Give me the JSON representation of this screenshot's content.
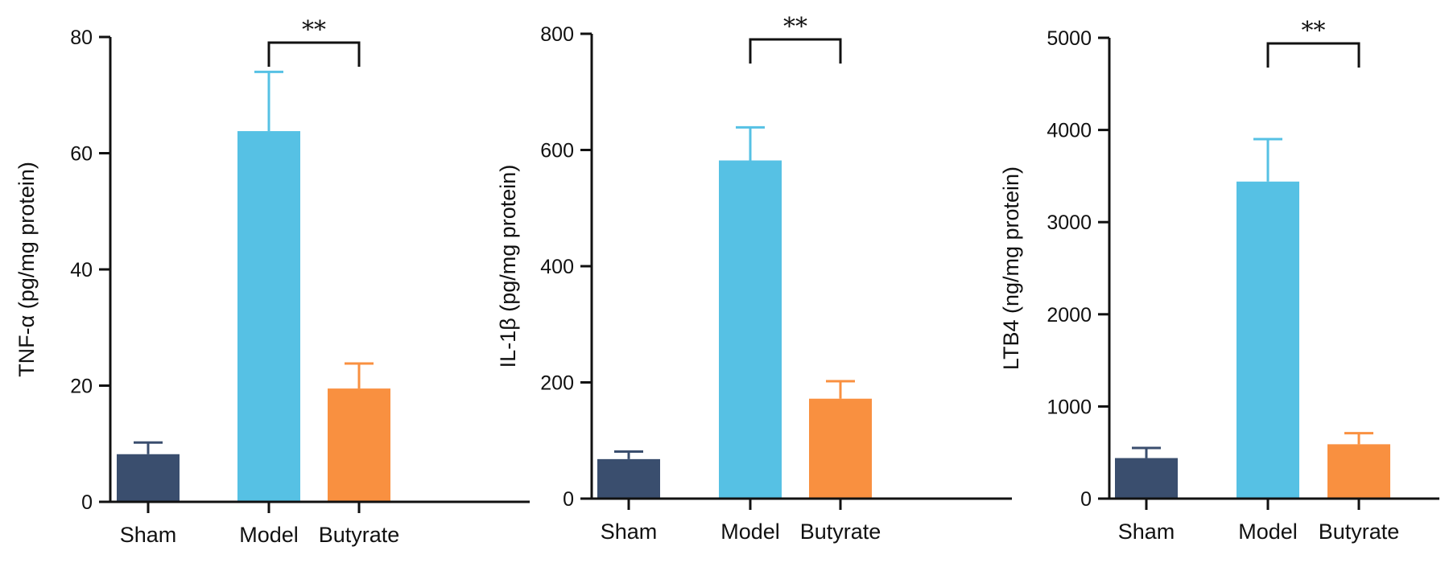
{
  "chart_data": [
    {
      "type": "bar",
      "categories": [
        "Sham",
        "Model",
        "Butyrate"
      ],
      "values": [
        8.2,
        63.8,
        19.5
      ],
      "errors": [
        2.0,
        10.2,
        4.3
      ],
      "ylabel": "TNF-α (pg/mg protein)",
      "ylim": [
        0,
        80
      ],
      "yticks": [
        0,
        20,
        40,
        60,
        80
      ],
      "significance": {
        "between": [
          "Model",
          "Butyrate"
        ],
        "label": "**"
      },
      "colors": [
        "#3a4e6e",
        "#56c1e4",
        "#f99040"
      ]
    },
    {
      "type": "bar",
      "categories": [
        "Sham",
        "Model",
        "Butyrate"
      ],
      "values": [
        68,
        582,
        172
      ],
      "errors": [
        13,
        57,
        30
      ],
      "ylabel": "IL-1β (pg/mg protein)",
      "ylim": [
        0,
        800
      ],
      "yticks": [
        0,
        200,
        400,
        600,
        800
      ],
      "significance": {
        "between": [
          "Model",
          "Butyrate"
        ],
        "label": "**"
      },
      "colors": [
        "#3a4e6e",
        "#56c1e4",
        "#f99040"
      ]
    },
    {
      "type": "bar",
      "categories": [
        "Sham",
        "Model",
        "Butyrate"
      ],
      "values": [
        440,
        3440,
        590
      ],
      "errors": [
        110,
        460,
        120
      ],
      "ylabel": "LTB4 (ng/mg protein)",
      "ylim": [
        0,
        5000
      ],
      "yticks": [
        0,
        1000,
        2000,
        3000,
        4000,
        5000
      ],
      "significance": {
        "between": [
          "Model",
          "Butyrate"
        ],
        "label": "**"
      },
      "colors": [
        "#3a4e6e",
        "#56c1e4",
        "#f99040"
      ]
    }
  ]
}
